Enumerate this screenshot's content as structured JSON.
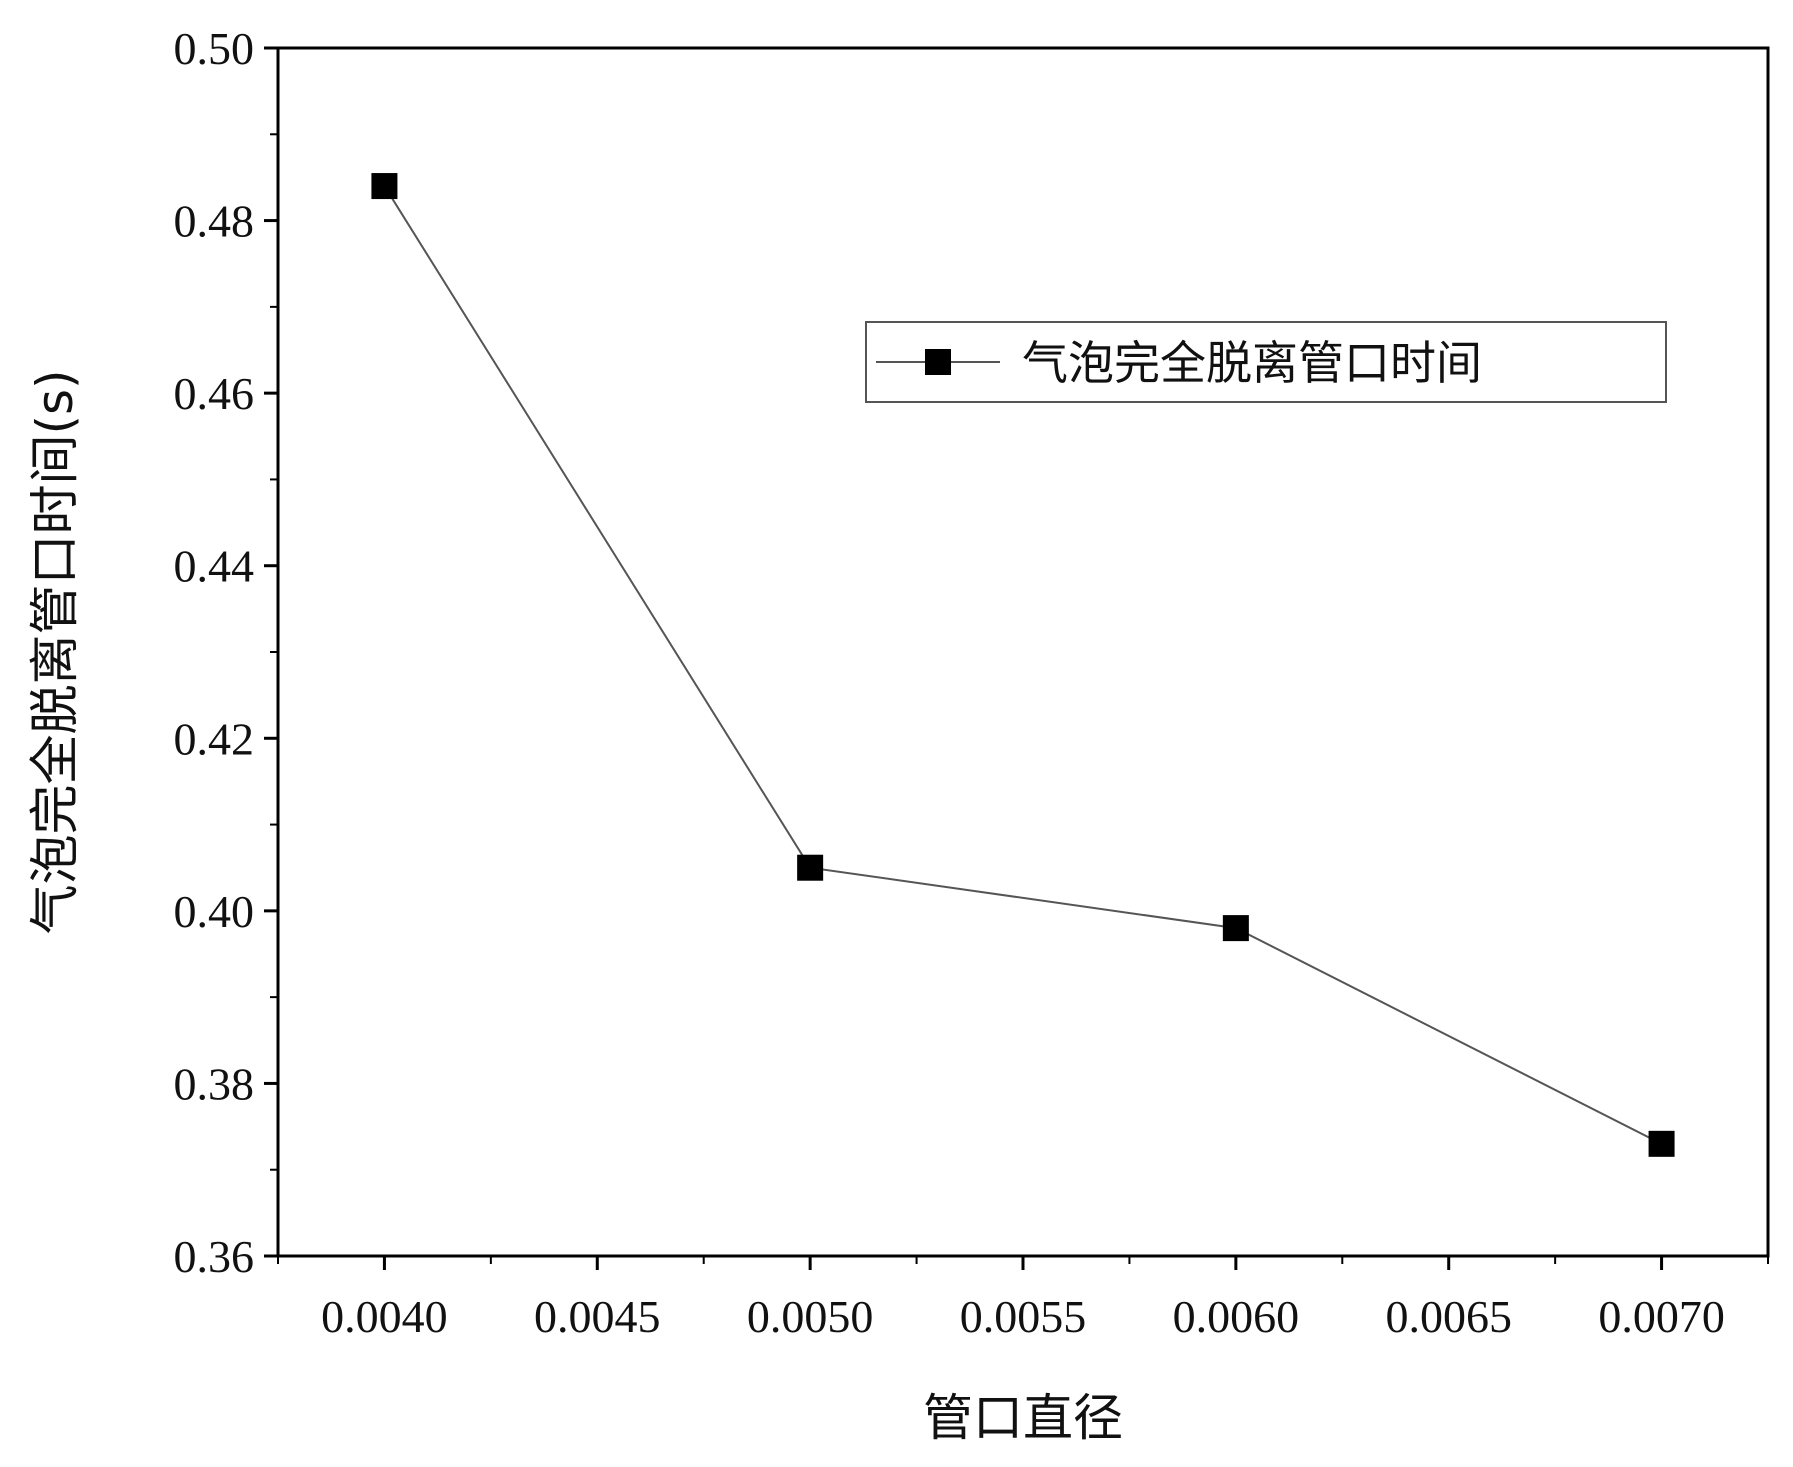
{
  "chart_data": {
    "type": "line",
    "x": [
      0.004,
      0.005,
      0.006,
      0.007
    ],
    "series": [
      {
        "name": "气泡完全脱离管口时间",
        "values": [
          0.484,
          0.405,
          0.398,
          0.373
        ]
      }
    ],
    "xlabel": "管口直径",
    "ylabel": "气泡完全脱离管口时间(s)",
    "xlim": [
      0.00375,
      0.00725
    ],
    "ylim": [
      0.36,
      0.5
    ],
    "xticks": [
      0.004,
      0.0045,
      0.005,
      0.0055,
      0.006,
      0.0065,
      0.007
    ],
    "xtick_labels": [
      "0.0040",
      "0.0045",
      "0.0050",
      "0.0055",
      "0.0060",
      "0.0065",
      "0.0070"
    ],
    "yticks": [
      0.36,
      0.38,
      0.4,
      0.42,
      0.44,
      0.46,
      0.48,
      0.5
    ],
    "ytick_labels": [
      "0.36",
      "0.38",
      "0.40",
      "0.42",
      "0.44",
      "0.46",
      "0.48",
      "0.50"
    ],
    "grid": false,
    "legend_position": "top-right",
    "colors": {
      "line": "#555555",
      "marker": "#000000",
      "axis": "#000000"
    }
  }
}
